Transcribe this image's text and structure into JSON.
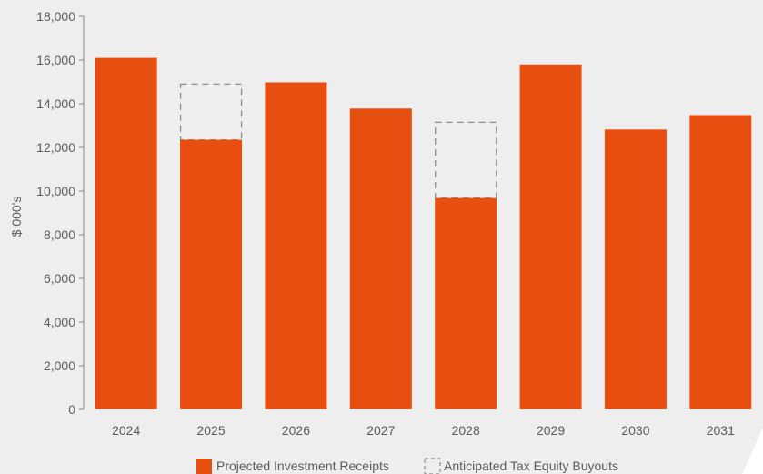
{
  "chart_data": {
    "type": "bar",
    "categories": [
      "2024",
      "2025",
      "2026",
      "2027",
      "2028",
      "2029",
      "2030",
      "2031"
    ],
    "series": [
      {
        "name": "Projected Investment Receipts",
        "values": [
          16100,
          12350,
          14980,
          13780,
          9680,
          15800,
          12820,
          13480
        ],
        "color": "#e84e0f"
      },
      {
        "name": "Anticipated Tax Equity Buyouts",
        "values": [
          null,
          14900,
          null,
          null,
          13150,
          null,
          null,
          null
        ],
        "style": "dashed-outline",
        "color": "#8c8c8c"
      }
    ],
    "title": "",
    "xlabel": "",
    "ylabel": "$ 000's",
    "ylim": [
      0,
      18000
    ],
    "yticks": [
      "0",
      "2,000",
      "4,000",
      "6,000",
      "8,000",
      "10,000",
      "12,000",
      "14,000",
      "16,000",
      "18,000"
    ],
    "ytick_values": [
      0,
      2000,
      4000,
      6000,
      8000,
      10000,
      12000,
      14000,
      16000,
      18000
    ],
    "grid": false,
    "legend": "bottom-center"
  }
}
